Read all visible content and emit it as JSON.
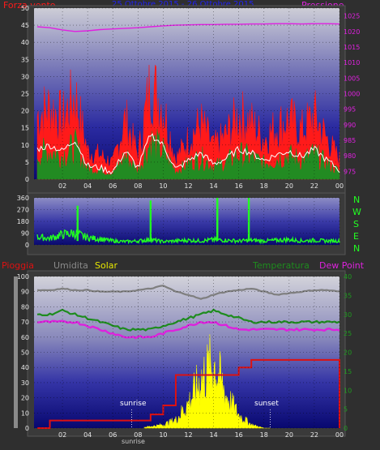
{
  "header": {
    "left_title": "Forza vento",
    "center_title": "25 Ottobre 2015 - 26 Ottobre 2015",
    "right_title": "Pressione"
  },
  "compass": [
    "N",
    "W",
    "S",
    "E",
    "N"
  ],
  "legend_bottom": {
    "pioggia": "Pioggia",
    "umidita": "Umidita",
    "solar": "Solar",
    "temperatura": "Temperatura",
    "dew_point": "Dew Point"
  },
  "annotations": {
    "sunrise_label": "sunrise",
    "sunset_label": "sunset",
    "sunrise_axis_label": "sunrise"
  },
  "colors": {
    "wind": "#ff1a1a",
    "gust_avg": "#228b22",
    "white_line": "#ffffff",
    "pressure": "#e020e0",
    "direction": "#22ff22",
    "humidity": "#7f7f7f",
    "solar": "#ffff00",
    "temperature": "#1e8c1e",
    "dew_point": "#dd22dd",
    "rain": "#dd1111",
    "title_blue": "#2222ee"
  },
  "chart_data": [
    {
      "type": "area",
      "name": "wind-pressure",
      "x_ticks": [
        "02",
        "04",
        "06",
        "08",
        "10",
        "12",
        "14",
        "16",
        "18",
        "20",
        "22",
        "00"
      ],
      "y_left_ticks": [
        0,
        5,
        10,
        15,
        20,
        25,
        30,
        35,
        40,
        45,
        50
      ],
      "y_right_ticks": [
        975,
        980,
        985,
        990,
        995,
        1000,
        1005,
        1010,
        1015,
        1020,
        1025
      ],
      "ylim_left": [
        0,
        50
      ],
      "ylim_right": [
        972.5,
        1027.5
      ],
      "x_hours": [
        0,
        1,
        2,
        3,
        4,
        5,
        6,
        7,
        8,
        9,
        10,
        11,
        12,
        13,
        14,
        15,
        16,
        17,
        18,
        19,
        20,
        21,
        22,
        23,
        24
      ],
      "series": [
        {
          "name": "Forza vento",
          "values": [
            16,
            18,
            15,
            21,
            7,
            6,
            4,
            15,
            6,
            24,
            18,
            5,
            10,
            14,
            8,
            11,
            16,
            14,
            10,
            13,
            15,
            12,
            16,
            10,
            5
          ]
        },
        {
          "name": "Pressione",
          "values": [
            1021.5,
            1021.2,
            1020.5,
            1020.0,
            1020.2,
            1020.6,
            1020.8,
            1021.0,
            1021.2,
            1021.5,
            1021.8,
            1022.0,
            1022.1,
            1022.2,
            1022.2,
            1022.3,
            1022.3,
            1022.4,
            1022.4,
            1022.5,
            1022.5,
            1022.4,
            1022.5,
            1022.5,
            1022.4
          ]
        }
      ],
      "grid": true
    },
    {
      "type": "line",
      "name": "wind-direction",
      "x_ticks": [
        "02",
        "04",
        "06",
        "08",
        "10",
        "12",
        "14",
        "16",
        "18",
        "20",
        "22",
        "00"
      ],
      "y_ticks": [
        0,
        90,
        180,
        270,
        360
      ],
      "ylim": [
        0,
        360
      ],
      "x_hours": [
        0,
        1,
        2,
        3,
        4,
        5,
        6,
        7,
        8,
        9,
        10,
        11,
        12,
        13,
        14,
        15,
        16,
        17,
        18,
        19,
        20,
        21,
        22,
        23,
        24
      ],
      "values": [
        60,
        50,
        80,
        90,
        55,
        45,
        30,
        25,
        30,
        40,
        25,
        30,
        35,
        30,
        40,
        35,
        30,
        35,
        30,
        35,
        40,
        30,
        35,
        30,
        30
      ],
      "spikes": [
        {
          "x": 3.2,
          "value": 300
        },
        {
          "x": 9.0,
          "value": 340
        },
        {
          "x": 14.3,
          "value": 360
        },
        {
          "x": 16.8,
          "value": 360
        }
      ],
      "grid": true
    },
    {
      "type": "line",
      "name": "rain-humidity-solar-temperature",
      "x_ticks": [
        "02",
        "04",
        "06",
        "08",
        "10",
        "12",
        "14",
        "16",
        "18",
        "20",
        "22",
        "00"
      ],
      "y_left_ticks": [
        0,
        10,
        20,
        30,
        40,
        50,
        60,
        70,
        80,
        90,
        100
      ],
      "y_right_ticks": [
        0,
        5,
        10,
        15,
        20,
        25,
        30,
        35,
        40
      ],
      "ylim_left": [
        0,
        100
      ],
      "ylim_right": [
        0,
        40
      ],
      "x_hours": [
        0,
        1,
        2,
        3,
        4,
        5,
        6,
        7,
        8,
        9,
        10,
        11,
        12,
        13,
        14,
        15,
        16,
        17,
        18,
        19,
        20,
        21,
        22,
        23,
        24
      ],
      "series": [
        {
          "name": "Umidita",
          "values": [
            91,
            91,
            92,
            91,
            91,
            90,
            90,
            90,
            91,
            92,
            94,
            90,
            88,
            85,
            88,
            90,
            91,
            92,
            90,
            88,
            89,
            90,
            91,
            91,
            90
          ]
        },
        {
          "name": "Temperatura",
          "values": [
            30,
            30,
            31,
            30,
            29,
            28,
            27,
            26,
            26,
            26,
            27,
            28,
            29,
            30,
            31,
            30,
            29,
            28,
            28,
            28,
            28,
            28,
            28,
            28,
            28
          ]
        },
        {
          "name": "Dew Point",
          "values": [
            28,
            28,
            28,
            28,
            27,
            26,
            25,
            24,
            24,
            24,
            25,
            26,
            27,
            28,
            28,
            27,
            26,
            26,
            26,
            26,
            26,
            26,
            26,
            26,
            26
          ]
        },
        {
          "name": "Pioggia",
          "values": [
            0,
            5,
            5,
            5,
            5,
            5,
            5,
            5,
            5,
            9,
            15,
            35,
            35,
            35,
            35,
            35,
            40,
            45,
            45,
            45,
            45,
            45,
            45,
            45,
            45
          ]
        },
        {
          "name": "Solar",
          "values": [
            0,
            0,
            0,
            0,
            0,
            0,
            0,
            0,
            0,
            1,
            2,
            5,
            15,
            30,
            40,
            20,
            8,
            2,
            0,
            0,
            0,
            0,
            0,
            0,
            0
          ]
        }
      ],
      "markers": [
        {
          "label": "sunrise",
          "x": 7.5
        },
        {
          "label": "sunset",
          "x": 18.5
        }
      ],
      "grid": true
    }
  ]
}
